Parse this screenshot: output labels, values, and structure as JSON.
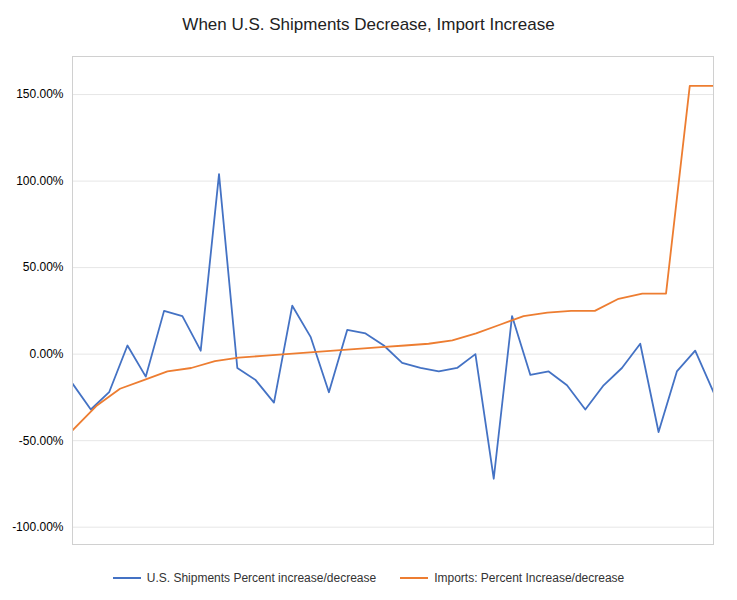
{
  "chart_data": {
    "type": "line",
    "title": "When U.S. Shipments Decrease, Import Increase",
    "series": [
      {
        "name": "U.S. Shipments Percent increase/decrease",
        "color": "#4472C4",
        "values": [
          -0.17,
          -0.32,
          -0.22,
          0.05,
          -0.13,
          0.25,
          0.22,
          0.02,
          1.04,
          -0.08,
          -0.15,
          -0.28,
          0.28,
          0.1,
          -0.22,
          0.14,
          0.12,
          0.05,
          -0.05,
          -0.08,
          -0.1,
          -0.08,
          0.0,
          -0.72,
          0.22,
          -0.12,
          -0.1,
          -0.18,
          -0.32,
          -0.18,
          -0.08,
          0.06,
          -0.45,
          -0.1,
          0.02,
          -0.22
        ]
      },
      {
        "name": "Imports: Percent Increase/decrease",
        "color": "#ED7D31",
        "values": [
          -0.44,
          -0.3,
          -0.2,
          -0.15,
          -0.1,
          -0.08,
          -0.04,
          -0.02,
          -0.01,
          0.0,
          0.01,
          0.02,
          0.03,
          0.04,
          0.05,
          0.06,
          0.08,
          0.12,
          0.17,
          0.22,
          0.24,
          0.25,
          0.25,
          0.32,
          0.35,
          0.35,
          1.55,
          1.55
        ]
      }
    ],
    "ylim": [
      -1.1,
      1.72
    ],
    "yticks": [
      {
        "value": -1.0,
        "label": "-100.00%"
      },
      {
        "value": -0.5,
        "label": "-50.00%"
      },
      {
        "value": 0.0,
        "label": "0.00%"
      },
      {
        "value": 0.5,
        "label": "50.00%"
      },
      {
        "value": 1.0,
        "label": "100.00%"
      },
      {
        "value": 1.5,
        "label": "150.00%"
      }
    ],
    "grid": true,
    "legend": "bottom",
    "tick_labels": "y"
  }
}
